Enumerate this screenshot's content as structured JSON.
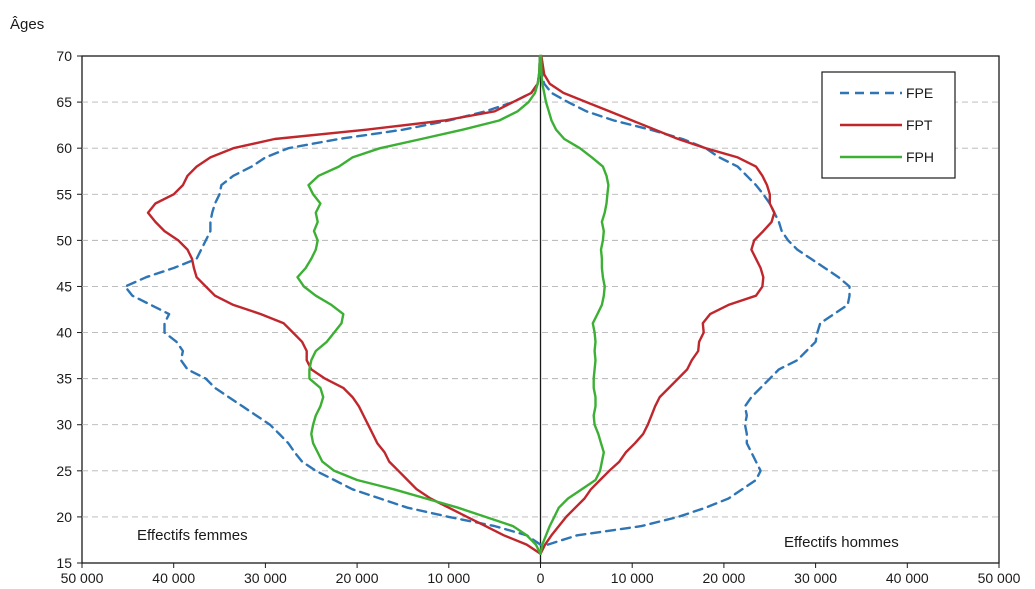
{
  "chart_data": {
    "type": "line",
    "ylabel": "Âges",
    "x_ticks": [
      "50 000",
      "40 000",
      "30 000",
      "20 000",
      "10 000",
      "0",
      "10 000",
      "20 000",
      "30 000",
      "40 000",
      "50 000"
    ],
    "y_ticks": [
      "15",
      "20",
      "25",
      "30",
      "35",
      "40",
      "45",
      "50",
      "55",
      "60",
      "65",
      "70"
    ],
    "xlim": [
      -50000,
      50000
    ],
    "ylim": [
      15,
      70
    ],
    "grid": "horizontal dashed",
    "legend_position": "top-right",
    "annotations": {
      "left": "Effectifs femmes",
      "right": "Effectifs hommes"
    },
    "series": [
      {
        "name": "FPE",
        "color": "#2e75b6",
        "style": "dashed",
        "women": [
          [
            17,
            0
          ],
          [
            18,
            1500
          ],
          [
            19,
            5000
          ],
          [
            20,
            10000
          ],
          [
            21,
            14500
          ],
          [
            22,
            17500
          ],
          [
            23,
            20500
          ],
          [
            24,
            22500
          ],
          [
            25,
            24500
          ],
          [
            26,
            26000
          ],
          [
            27,
            26800
          ],
          [
            28,
            27500
          ],
          [
            29,
            28500
          ],
          [
            30,
            29500
          ],
          [
            31,
            31000
          ],
          [
            32,
            32500
          ],
          [
            33,
            34000
          ],
          [
            34,
            35500
          ],
          [
            35,
            36500
          ],
          [
            36,
            38500
          ],
          [
            37,
            39200
          ],
          [
            38,
            39000
          ],
          [
            39,
            39700
          ],
          [
            40,
            41000
          ],
          [
            41,
            41000
          ],
          [
            42,
            40500
          ],
          [
            43,
            42500
          ],
          [
            44,
            44500
          ],
          [
            45,
            45300
          ],
          [
            46,
            43000
          ],
          [
            47,
            40000
          ],
          [
            48,
            37500
          ],
          [
            49,
            37000
          ],
          [
            50,
            36500
          ],
          [
            51,
            36000
          ],
          [
            52,
            36000
          ],
          [
            53,
            35800
          ],
          [
            54,
            35500
          ],
          [
            55,
            35000
          ],
          [
            56,
            34800
          ],
          [
            57,
            33500
          ],
          [
            58,
            31500
          ],
          [
            59,
            30000
          ],
          [
            60,
            27500
          ],
          [
            61,
            22000
          ],
          [
            62,
            15000
          ],
          [
            63,
            10000
          ],
          [
            64,
            6000
          ],
          [
            65,
            3000
          ],
          [
            66,
            1000
          ],
          [
            67,
            300
          ],
          [
            68,
            150
          ],
          [
            70,
            50
          ]
        ],
        "men": [
          [
            17,
            800
          ],
          [
            18,
            4000
          ],
          [
            19,
            11000
          ],
          [
            20,
            15000
          ],
          [
            21,
            18000
          ],
          [
            22,
            20500
          ],
          [
            23,
            22000
          ],
          [
            24,
            23500
          ],
          [
            25,
            24000
          ],
          [
            26,
            23500
          ],
          [
            27,
            23000
          ],
          [
            28,
            22500
          ],
          [
            29,
            22500
          ],
          [
            30,
            22300
          ],
          [
            31,
            22500
          ],
          [
            32,
            22300
          ],
          [
            33,
            23000
          ],
          [
            34,
            24000
          ],
          [
            35,
            25000
          ],
          [
            36,
            26000
          ],
          [
            37,
            28000
          ],
          [
            38,
            29000
          ],
          [
            39,
            30000
          ],
          [
            40,
            30200
          ],
          [
            41,
            30500
          ],
          [
            42,
            32000
          ],
          [
            43,
            33500
          ],
          [
            44,
            33700
          ],
          [
            45,
            33700
          ],
          [
            46,
            32500
          ],
          [
            47,
            31000
          ],
          [
            48,
            29500
          ],
          [
            49,
            28000
          ],
          [
            50,
            27000
          ],
          [
            51,
            26300
          ],
          [
            52,
            26000
          ],
          [
            53,
            25500
          ],
          [
            54,
            25000
          ],
          [
            55,
            24300
          ],
          [
            56,
            23500
          ],
          [
            57,
            22500
          ],
          [
            58,
            21500
          ],
          [
            59,
            19500
          ],
          [
            60,
            18000
          ],
          [
            61,
            15500
          ],
          [
            62,
            12000
          ],
          [
            63,
            8000
          ],
          [
            64,
            5000
          ],
          [
            65,
            3000
          ],
          [
            66,
            1200
          ],
          [
            67,
            400
          ],
          [
            68,
            150
          ],
          [
            70,
            50
          ]
        ]
      },
      {
        "name": "FPT",
        "color": "#c0272d",
        "style": "solid",
        "women": [
          [
            16,
            0
          ],
          [
            17,
            1500
          ],
          [
            18,
            4000
          ],
          [
            19,
            6000
          ],
          [
            20,
            8000
          ],
          [
            21,
            10000
          ],
          [
            22,
            12000
          ],
          [
            23,
            13500
          ],
          [
            24,
            14500
          ],
          [
            25,
            15500
          ],
          [
            26,
            16500
          ],
          [
            27,
            17000
          ],
          [
            28,
            17800
          ],
          [
            29,
            18300
          ],
          [
            30,
            18800
          ],
          [
            31,
            19300
          ],
          [
            32,
            19800
          ],
          [
            33,
            20500
          ],
          [
            34,
            21500
          ],
          [
            35,
            23500
          ],
          [
            36,
            25000
          ],
          [
            37,
            25500
          ],
          [
            38,
            25500
          ],
          [
            39,
            26000
          ],
          [
            40,
            27000
          ],
          [
            41,
            28000
          ],
          [
            42,
            30500
          ],
          [
            43,
            33500
          ],
          [
            44,
            35500
          ],
          [
            45,
            36500
          ],
          [
            46,
            37500
          ],
          [
            47,
            37800
          ],
          [
            48,
            38000
          ],
          [
            49,
            38500
          ],
          [
            50,
            39500
          ],
          [
            51,
            41000
          ],
          [
            52,
            42000
          ],
          [
            53,
            42800
          ],
          [
            54,
            42000
          ],
          [
            55,
            40000
          ],
          [
            56,
            39000
          ],
          [
            57,
            38500
          ],
          [
            58,
            37500
          ],
          [
            59,
            36000
          ],
          [
            60,
            33500
          ],
          [
            61,
            29000
          ],
          [
            62,
            19000
          ],
          [
            63,
            10500
          ],
          [
            64,
            5000
          ],
          [
            65,
            3000
          ],
          [
            66,
            1000
          ],
          [
            67,
            300
          ],
          [
            68,
            150
          ],
          [
            70,
            50
          ]
        ],
        "men": [
          [
            16,
            0
          ],
          [
            17,
            500
          ],
          [
            18,
            1200
          ],
          [
            19,
            2000
          ],
          [
            20,
            2800
          ],
          [
            21,
            3800
          ],
          [
            22,
            4800
          ],
          [
            23,
            5500
          ],
          [
            24,
            6500
          ],
          [
            25,
            7500
          ],
          [
            26,
            8600
          ],
          [
            27,
            9300
          ],
          [
            28,
            10300
          ],
          [
            29,
            11200
          ],
          [
            30,
            11700
          ],
          [
            31,
            12100
          ],
          [
            32,
            12500
          ],
          [
            33,
            13000
          ],
          [
            34,
            14000
          ],
          [
            35,
            15000
          ],
          [
            36,
            16000
          ],
          [
            37,
            16500
          ],
          [
            38,
            17200
          ],
          [
            39,
            17300
          ],
          [
            40,
            17800
          ],
          [
            41,
            17700
          ],
          [
            42,
            18500
          ],
          [
            43,
            20500
          ],
          [
            44,
            23500
          ],
          [
            45,
            24200
          ],
          [
            46,
            24300
          ],
          [
            47,
            24000
          ],
          [
            48,
            23500
          ],
          [
            49,
            23000
          ],
          [
            50,
            23300
          ],
          [
            51,
            24300
          ],
          [
            52,
            25200
          ],
          [
            53,
            25500
          ],
          [
            54,
            25000
          ],
          [
            55,
            25000
          ],
          [
            56,
            24700
          ],
          [
            57,
            24200
          ],
          [
            58,
            23500
          ],
          [
            59,
            21500
          ],
          [
            60,
            18000
          ],
          [
            61,
            15000
          ],
          [
            62,
            12500
          ],
          [
            63,
            10000
          ],
          [
            64,
            7500
          ],
          [
            65,
            5000
          ],
          [
            66,
            2500
          ],
          [
            67,
            1000
          ],
          [
            68,
            400
          ],
          [
            70,
            100
          ]
        ]
      },
      {
        "name": "FPH",
        "color": "#3cb034",
        "style": "solid",
        "women": [
          [
            16,
            0
          ],
          [
            17,
            500
          ],
          [
            18,
            1500
          ],
          [
            19,
            3000
          ],
          [
            20,
            6000
          ],
          [
            21,
            9000
          ],
          [
            22,
            12500
          ],
          [
            23,
            16000
          ],
          [
            24,
            20000
          ],
          [
            25,
            22500
          ],
          [
            26,
            23800
          ],
          [
            27,
            24300
          ],
          [
            28,
            24800
          ],
          [
            29,
            25000
          ],
          [
            30,
            24800
          ],
          [
            31,
            24500
          ],
          [
            32,
            24000
          ],
          [
            33,
            23700
          ],
          [
            34,
            24000
          ],
          [
            35,
            25200
          ],
          [
            36,
            25200
          ],
          [
            37,
            25000
          ],
          [
            38,
            24500
          ],
          [
            39,
            23300
          ],
          [
            40,
            22500
          ],
          [
            41,
            21700
          ],
          [
            42,
            21500
          ],
          [
            43,
            22800
          ],
          [
            44,
            24500
          ],
          [
            45,
            25800
          ],
          [
            46,
            26500
          ],
          [
            47,
            25600
          ],
          [
            48,
            25000
          ],
          [
            49,
            24500
          ],
          [
            50,
            24300
          ],
          [
            51,
            24700
          ],
          [
            52,
            24300
          ],
          [
            53,
            24500
          ],
          [
            54,
            24000
          ],
          [
            55,
            24800
          ],
          [
            56,
            25300
          ],
          [
            57,
            24200
          ],
          [
            58,
            22000
          ],
          [
            59,
            20500
          ],
          [
            60,
            17500
          ],
          [
            61,
            13000
          ],
          [
            62,
            8500
          ],
          [
            63,
            4500
          ],
          [
            64,
            2500
          ],
          [
            65,
            1300
          ],
          [
            66,
            600
          ],
          [
            67,
            300
          ],
          [
            68,
            150
          ],
          [
            70,
            50
          ]
        ],
        "men": [
          [
            16,
            0
          ],
          [
            17,
            200
          ],
          [
            18,
            600
          ],
          [
            19,
            1000
          ],
          [
            20,
            1500
          ],
          [
            21,
            2000
          ],
          [
            22,
            3000
          ],
          [
            23,
            4500
          ],
          [
            24,
            6000
          ],
          [
            25,
            6500
          ],
          [
            26,
            6700
          ],
          [
            27,
            6900
          ],
          [
            28,
            6600
          ],
          [
            29,
            6300
          ],
          [
            30,
            5900
          ],
          [
            31,
            5800
          ],
          [
            32,
            6000
          ],
          [
            33,
            6000
          ],
          [
            34,
            5800
          ],
          [
            35,
            5800
          ],
          [
            36,
            5900
          ],
          [
            37,
            6000
          ],
          [
            38,
            5900
          ],
          [
            39,
            6000
          ],
          [
            40,
            5900
          ],
          [
            41,
            5700
          ],
          [
            42,
            6200
          ],
          [
            43,
            6700
          ],
          [
            44,
            6900
          ],
          [
            45,
            7000
          ],
          [
            46,
            6800
          ],
          [
            47,
            6700
          ],
          [
            48,
            6700
          ],
          [
            49,
            6600
          ],
          [
            50,
            6800
          ],
          [
            51,
            6900
          ],
          [
            52,
            6700
          ],
          [
            53,
            7000
          ],
          [
            54,
            7200
          ],
          [
            55,
            7300
          ],
          [
            56,
            7400
          ],
          [
            57,
            7200
          ],
          [
            58,
            6800
          ],
          [
            59,
            5600
          ],
          [
            60,
            4300
          ],
          [
            61,
            2600
          ],
          [
            62,
            1700
          ],
          [
            63,
            1200
          ],
          [
            64,
            900
          ],
          [
            65,
            600
          ],
          [
            66,
            400
          ],
          [
            67,
            200
          ],
          [
            68,
            100
          ],
          [
            70,
            50
          ]
        ]
      }
    ]
  }
}
